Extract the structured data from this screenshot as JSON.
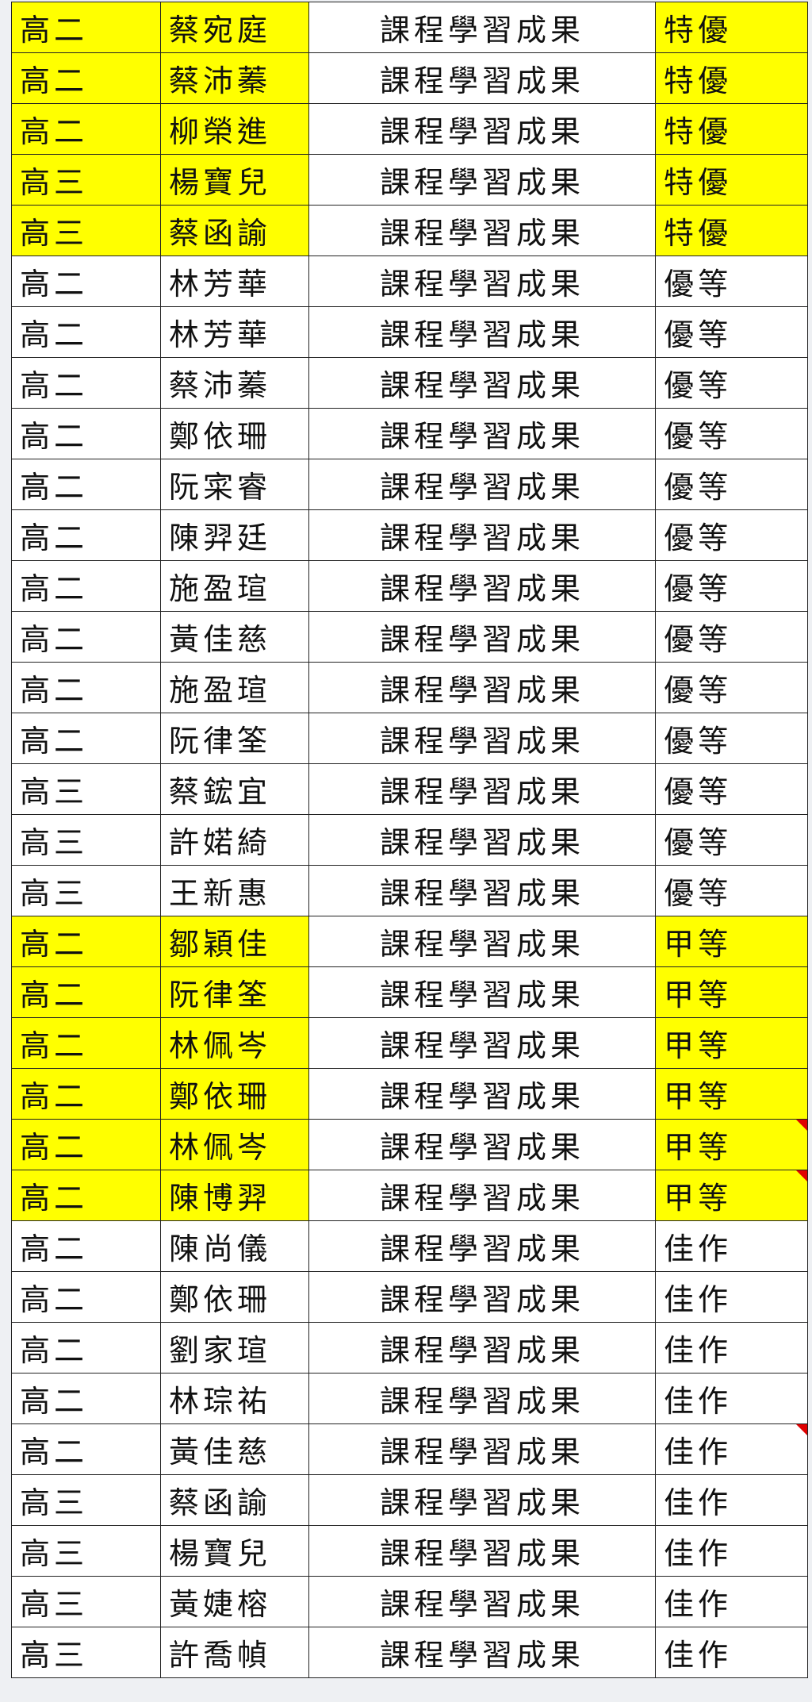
{
  "table": {
    "highlight_color": "#ffff00",
    "rows": [
      {
        "cells": [
          "高二",
          "蔡宛庭",
          "課程學習成果",
          "特優"
        ],
        "highlight": true
      },
      {
        "cells": [
          "高二",
          "蔡沛蓁",
          "課程學習成果",
          "特優"
        ],
        "highlight": true
      },
      {
        "cells": [
          "高二",
          "柳榮進",
          "課程學習成果",
          "特優"
        ],
        "highlight": true
      },
      {
        "cells": [
          "高三",
          "楊寶兒",
          "課程學習成果",
          "特優"
        ],
        "highlight": true
      },
      {
        "cells": [
          "高三",
          "蔡函諭",
          "課程學習成果",
          "特優"
        ],
        "highlight": true
      },
      {
        "cells": [
          "高二",
          "林芳華",
          "課程學習成果",
          "優等"
        ]
      },
      {
        "cells": [
          "高二",
          "林芳華",
          "課程學習成果",
          "優等"
        ]
      },
      {
        "cells": [
          "高二",
          "蔡沛蓁",
          "課程學習成果",
          "優等"
        ]
      },
      {
        "cells": [
          "高二",
          "鄭依珊",
          "課程學習成果",
          "優等"
        ]
      },
      {
        "cells": [
          "高二",
          "阮寀睿",
          "課程學習成果",
          "優等"
        ]
      },
      {
        "cells": [
          "高二",
          "陳羿廷",
          "課程學習成果",
          "優等"
        ]
      },
      {
        "cells": [
          "高二",
          "施盈瑄",
          "課程學習成果",
          "優等"
        ]
      },
      {
        "cells": [
          "高二",
          "黃佳慈",
          "課程學習成果",
          "優等"
        ]
      },
      {
        "cells": [
          "高二",
          "施盈瑄",
          "課程學習成果",
          "優等"
        ]
      },
      {
        "cells": [
          "高二",
          "阮律筌",
          "課程學習成果",
          "優等"
        ]
      },
      {
        "cells": [
          "高三",
          "蔡鋐宜",
          "課程學習成果",
          "優等"
        ]
      },
      {
        "cells": [
          "高三",
          "許婼綺",
          "課程學習成果",
          "優等"
        ]
      },
      {
        "cells": [
          "高三",
          "王新惠",
          "課程學習成果",
          "優等"
        ]
      },
      {
        "cells": [
          "高二",
          "鄒穎佳",
          "課程學習成果",
          "甲等"
        ],
        "highlight": true
      },
      {
        "cells": [
          "高二",
          "阮律筌",
          "課程學習成果",
          "甲等"
        ],
        "highlight": true
      },
      {
        "cells": [
          "高二",
          "林佩岑",
          "課程學習成果",
          "甲等"
        ],
        "highlight": true
      },
      {
        "cells": [
          "高二",
          "鄭依珊",
          "課程學習成果",
          "甲等"
        ],
        "highlight": true
      },
      {
        "cells": [
          "高二",
          "林佩岑",
          "課程學習成果",
          "甲等"
        ],
        "highlight": true,
        "comment": true
      },
      {
        "cells": [
          "高二",
          "陳博羿",
          "課程學習成果",
          "甲等"
        ],
        "highlight": true,
        "comment": true
      },
      {
        "cells": [
          "高二",
          "陳尚儀",
          "課程學習成果",
          "佳作"
        ]
      },
      {
        "cells": [
          "高二",
          "鄭依珊",
          "課程學習成果",
          "佳作"
        ]
      },
      {
        "cells": [
          "高二",
          "劉家瑄",
          "課程學習成果",
          "佳作"
        ]
      },
      {
        "cells": [
          "高二",
          "林琮祐",
          "課程學習成果",
          "佳作"
        ]
      },
      {
        "cells": [
          "高二",
          "黃佳慈",
          "課程學習成果",
          "佳作"
        ],
        "comment": true
      },
      {
        "cells": [
          "高三",
          "蔡函諭",
          "課程學習成果",
          "佳作"
        ]
      },
      {
        "cells": [
          "高三",
          "楊寶兒",
          "課程學習成果",
          "佳作"
        ]
      },
      {
        "cells": [
          "高三",
          "黃婕榕",
          "課程學習成果",
          "佳作"
        ]
      },
      {
        "cells": [
          "高三",
          "許喬幀",
          "課程學習成果",
          "佳作"
        ]
      }
    ]
  }
}
